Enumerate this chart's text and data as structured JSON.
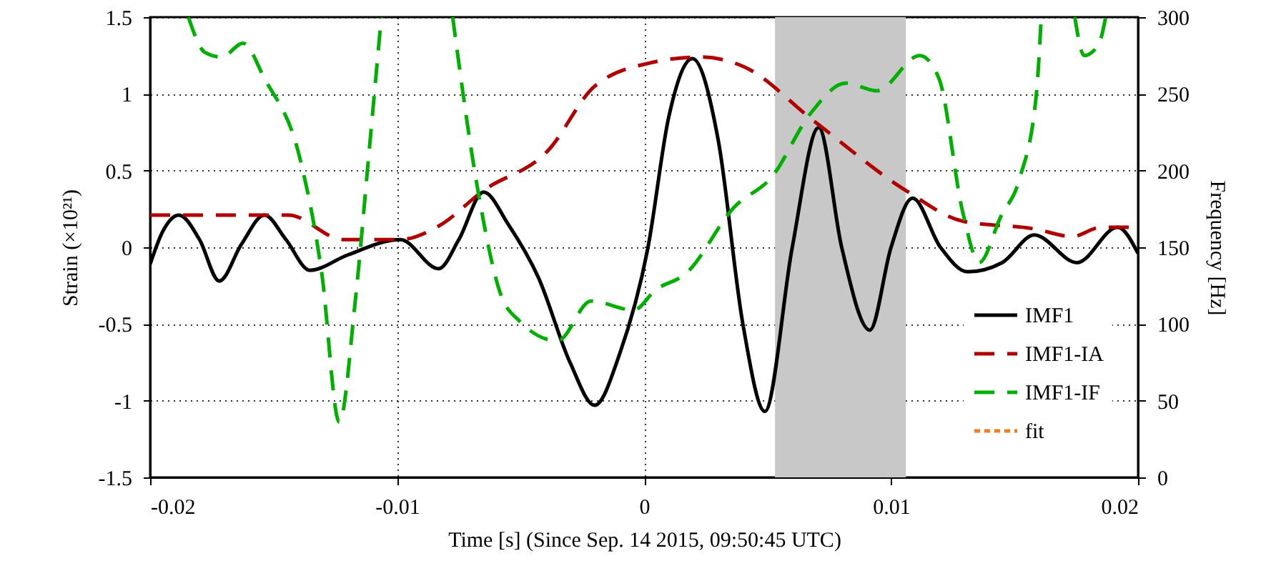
{
  "chart_data": {
    "type": "line",
    "xlabel": "Time [s] (Since Sep. 14 2015, 09:50:45 UTC)",
    "ylabel": "Strain (×10²¹)",
    "y2label": "Frequency [Hz]",
    "xlim": [
      -0.02,
      0.02
    ],
    "xticks": [
      -0.02,
      -0.01,
      0,
      0.01,
      0.02
    ],
    "ylim": [
      -1.5,
      1.5
    ],
    "yticks": [
      -1.5,
      -1,
      -0.5,
      0,
      0.5,
      1,
      1.5
    ],
    "y2lim": [
      0,
      300
    ],
    "y2ticks": [
      0,
      50,
      100,
      150,
      200,
      250,
      300
    ],
    "grid": true,
    "legend": "bottom right",
    "bands": [
      {
        "axis": "x",
        "from": 0.0053,
        "to": 0.0106,
        "color": "#c8c8c8"
      }
    ],
    "series": [
      {
        "name": "IMF1",
        "color": "#000000",
        "line_style": "solid",
        "x": [
          -0.02,
          -0.0195,
          -0.01884,
          -0.018,
          -0.0172,
          -0.0163,
          -0.01537,
          -0.0145,
          -0.01353,
          -0.012,
          -0.00987,
          -0.00832,
          -0.0075,
          -0.0065,
          -0.0055,
          -0.00427,
          -0.003,
          -0.002,
          -0.001,
          0.00016,
          0.001,
          0.00196,
          0.003,
          0.004,
          0.00489,
          0.006,
          0.00707,
          0.008,
          0.00914,
          0.01,
          0.01087,
          0.012,
          0.0131,
          0.0145,
          0.0158,
          0.01753,
          0.01917,
          0.02
        ],
        "values": [
          -0.11,
          0.1,
          0.21,
          0.05,
          -0.22,
          0.02,
          0.21,
          0.05,
          -0.15,
          -0.05,
          0.05,
          -0.14,
          0.05,
          0.36,
          0.15,
          -0.2,
          -0.75,
          -1.03,
          -0.7,
          0.0,
          0.85,
          1.23,
          0.7,
          -0.5,
          -1.07,
          0.0,
          0.78,
          0.0,
          -0.54,
          0.0,
          0.32,
          0.0,
          -0.16,
          -0.1,
          0.08,
          -0.1,
          0.13,
          -0.04
        ]
      },
      {
        "name": "IMF1-IA",
        "color": "#b00000",
        "line_style": "dashed",
        "x": [
          -0.02,
          -0.0144,
          -0.01218,
          -0.0099,
          -0.0083,
          -0.0065,
          -0.00389,
          -0.002,
          0.0002,
          0.00229,
          0.004,
          0.0069,
          0.0106,
          0.0129,
          0.0158,
          0.01734,
          0.0185,
          0.02
        ],
        "values": [
          0.21,
          0.21,
          0.05,
          0.05,
          0.14,
          0.37,
          0.63,
          1.05,
          1.2,
          1.24,
          1.18,
          0.82,
          0.37,
          0.17,
          0.12,
          0.07,
          0.13,
          0.13
        ]
      },
      {
        "name": "IMF1-IF",
        "color": "#00b000",
        "line_style": "dashed",
        "axis": "y2",
        "x": [
          -0.01845,
          -0.01778,
          -0.0171,
          -0.01624,
          -0.01537,
          -0.01392,
          -0.01305,
          -0.01234,
          -0.0117,
          -0.01113,
          -0.01064,
          -0.0092,
          -0.00775,
          -0.00678,
          -0.00582,
          -0.00505,
          -0.0035,
          -0.00215,
          -0.00042,
          0.00045,
          0.0017,
          0.00364,
          0.00518,
          0.00673,
          0.00817,
          0.00943,
          0.01116,
          0.01194,
          0.0129,
          0.01357,
          0.01444,
          0.01521,
          0.01589,
          0.01608,
          0.0168,
          0.01744,
          0.01782,
          0.0184,
          0.01869
        ],
        "values": [
          300,
          277,
          274,
          283,
          260,
          207,
          133,
          36,
          114,
          213,
          300,
          null,
          300,
          192,
          120,
          102,
          89,
          115,
          109,
          122,
          133,
          176,
          196,
          237,
          257,
          252,
          275,
          260,
          173,
          140,
          170,
          195,
          251,
          300,
          null,
          300,
          275,
          282,
          300
        ]
      },
      {
        "name": "fit",
        "color": "#f07f1f",
        "line_style": "dotted"
      }
    ]
  }
}
